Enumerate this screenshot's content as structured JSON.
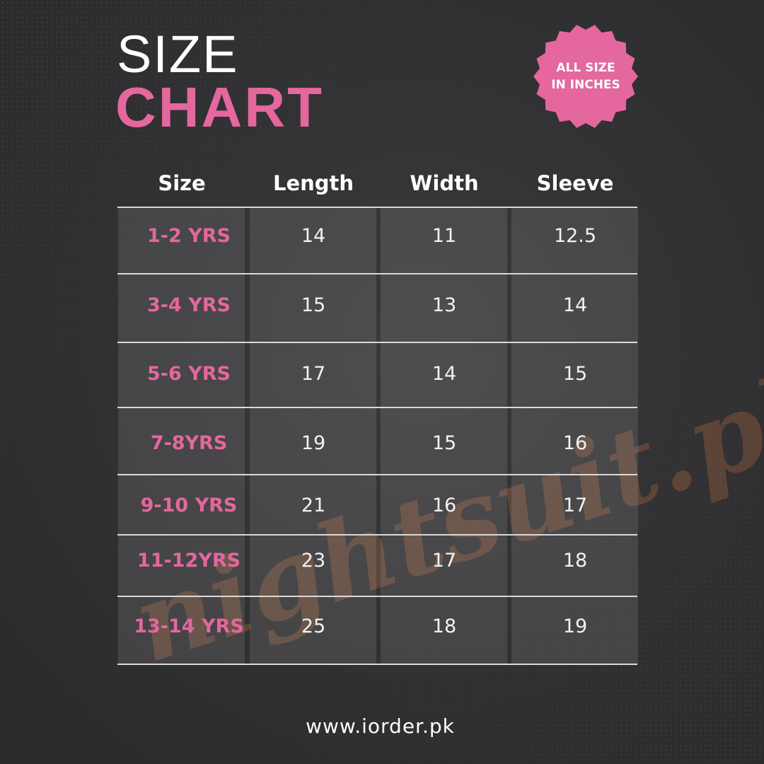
{
  "title": {
    "line1": "SIZE",
    "line2": "CHART"
  },
  "badge": {
    "line1": "ALL SIZE",
    "line2": "IN INCHES"
  },
  "watermark": "nightsuit.pk",
  "footer": "www.iorder.pk",
  "colors": {
    "accent": "#e4679e",
    "background": "#323133",
    "text": "#ffffff"
  },
  "chart_data": {
    "type": "table",
    "columns": [
      "Size",
      "Length",
      "Width",
      "Sleeve"
    ],
    "rows": [
      [
        "1-2 YRS",
        "14",
        "11",
        "12.5"
      ],
      [
        "3-4 YRS",
        "15",
        "13",
        "14"
      ],
      [
        "5-6 YRS",
        "17",
        "14",
        "15"
      ],
      [
        "7-8YRS",
        "19",
        "15",
        "16"
      ],
      [
        "9-10 YRS",
        "21",
        "16",
        "17"
      ],
      [
        "11-12YRS",
        "23",
        "17",
        "18"
      ],
      [
        "13-14 YRS",
        "25",
        "18",
        "19"
      ]
    ],
    "unit": "inches"
  }
}
